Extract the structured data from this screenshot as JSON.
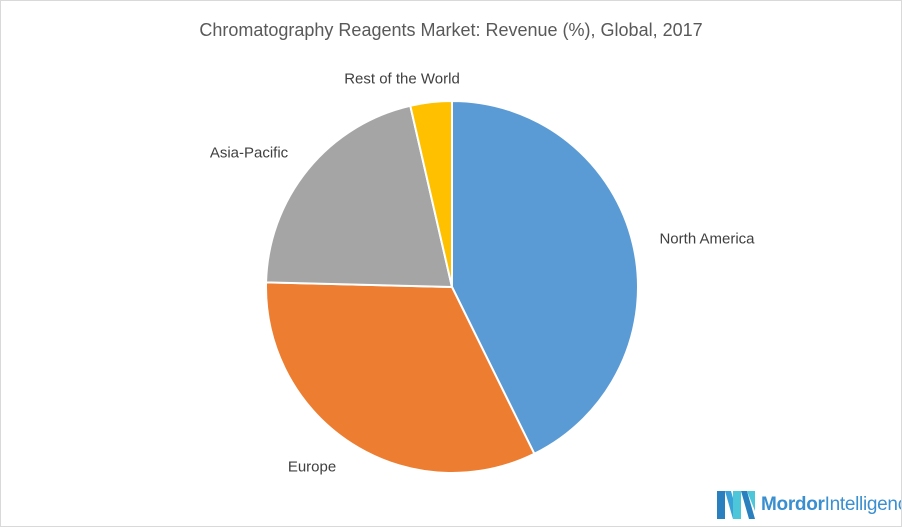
{
  "chart_data": {
    "type": "pie",
    "title": "Chromatography Reagents Market: Revenue (%), Global, 2017",
    "start_angle": "top",
    "direction": "clockwise",
    "slices": [
      {
        "label": "North America",
        "value": 42.7,
        "color": "#5b9bd5"
      },
      {
        "label": "Europe",
        "value": 32.7,
        "color": "#ed7d31"
      },
      {
        "label": "Asia-Pacific",
        "value": 21.0,
        "color": "#a5a5a5"
      },
      {
        "label": "Rest of the World",
        "value": 3.6,
        "color": "#ffc000"
      }
    ]
  },
  "logo": {
    "text_bold": "Mordor",
    "text_light": "Intelligence"
  }
}
